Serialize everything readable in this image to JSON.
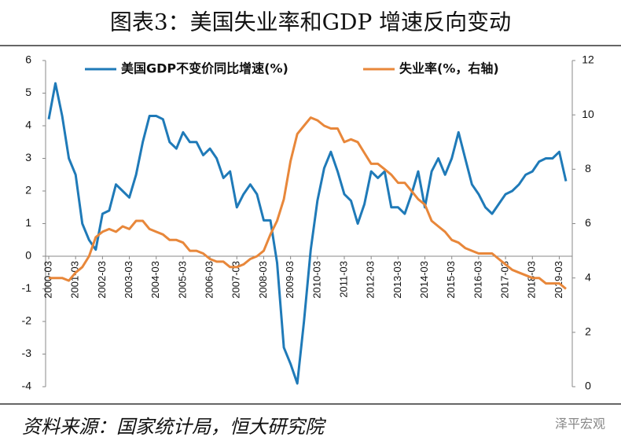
{
  "chart_data": {
    "type": "line",
    "title": "图表3：美国失业率和GDP 增速反向变动",
    "categories": [
      "2000-03",
      null,
      null,
      null,
      "2001-03",
      null,
      null,
      null,
      "2002-03",
      null,
      null,
      null,
      "2003-03",
      null,
      null,
      null,
      "2004-03",
      null,
      null,
      null,
      "2005-03",
      null,
      null,
      null,
      "2006-03",
      null,
      null,
      null,
      "2007-03",
      null,
      null,
      null,
      "2008-03",
      null,
      null,
      null,
      "2009-03",
      null,
      null,
      null,
      "2010-03",
      null,
      null,
      null,
      "2011-03",
      null,
      null,
      null,
      "2012-03",
      null,
      null,
      null,
      "2013-03",
      null,
      null,
      null,
      "2014-03",
      null,
      null,
      null,
      "2015-03",
      null,
      null,
      null,
      "2016-03",
      null,
      null,
      null,
      "2017-03",
      null,
      null,
      null,
      "2018-03",
      null,
      null,
      null,
      "2019-03",
      null
    ],
    "series": [
      {
        "name": "美国GDP不变价同比增速(%)",
        "color": "#1f7ab8",
        "values": [
          4.2,
          5.3,
          4.3,
          3.0,
          2.5,
          1.0,
          0.5,
          0.2,
          1.3,
          1.4,
          2.2,
          2.0,
          1.8,
          2.5,
          3.5,
          4.3,
          4.3,
          4.2,
          3.5,
          3.3,
          3.8,
          3.5,
          3.5,
          3.1,
          3.3,
          3.0,
          2.4,
          2.6,
          1.5,
          1.9,
          2.2,
          1.9,
          1.1,
          1.1,
          -0.2,
          -2.8,
          -3.3,
          -3.9,
          -2.0,
          0.2,
          1.7,
          2.7,
          3.2,
          2.6,
          1.9,
          1.7,
          1.0,
          1.6,
          2.6,
          2.4,
          2.6,
          1.5,
          1.5,
          1.3,
          1.9,
          2.6,
          1.5,
          2.6,
          3.0,
          2.5,
          3.0,
          3.8,
          3.0,
          2.2,
          1.9,
          1.5,
          1.3,
          1.6,
          1.9,
          2.0,
          2.2,
          2.5,
          2.6,
          2.9,
          3.0,
          3.0,
          3.2,
          2.3
        ]
      },
      {
        "name": "失业率(%，右轴)",
        "color": "#e8873a",
        "axis": "y2",
        "values": [
          4.0,
          4.0,
          4.0,
          3.9,
          4.2,
          4.4,
          4.8,
          5.5,
          5.7,
          5.8,
          5.7,
          5.9,
          5.8,
          6.1,
          6.1,
          5.8,
          5.7,
          5.6,
          5.4,
          5.4,
          5.3,
          5.0,
          5.0,
          4.9,
          4.7,
          4.6,
          4.6,
          4.4,
          4.4,
          4.5,
          4.7,
          4.8,
          5.0,
          5.6,
          6.1,
          6.9,
          8.3,
          9.3,
          9.6,
          9.9,
          9.8,
          9.6,
          9.5,
          9.5,
          9.0,
          9.1,
          9.0,
          8.6,
          8.2,
          8.2,
          8.0,
          7.8,
          7.5,
          7.5,
          7.2,
          6.9,
          6.7,
          6.1,
          5.9,
          5.7,
          5.4,
          5.3,
          5.1,
          5.0,
          4.9,
          4.9,
          4.9,
          4.7,
          4.5,
          4.3,
          4.2,
          4.1,
          4.0,
          4.0,
          3.8,
          3.8,
          3.8,
          3.6
        ]
      }
    ],
    "ylim": [
      -4,
      6
    ],
    "yticks": [
      -4,
      -3,
      -2,
      -1,
      0,
      1,
      2,
      3,
      4,
      5,
      6
    ],
    "y2lim": [
      0,
      12
    ],
    "y2ticks": [
      0,
      2,
      4,
      6,
      8,
      10,
      12
    ],
    "source": "资料来源：国家统计局，恒大研究院",
    "watermark": "泽平宏观"
  }
}
